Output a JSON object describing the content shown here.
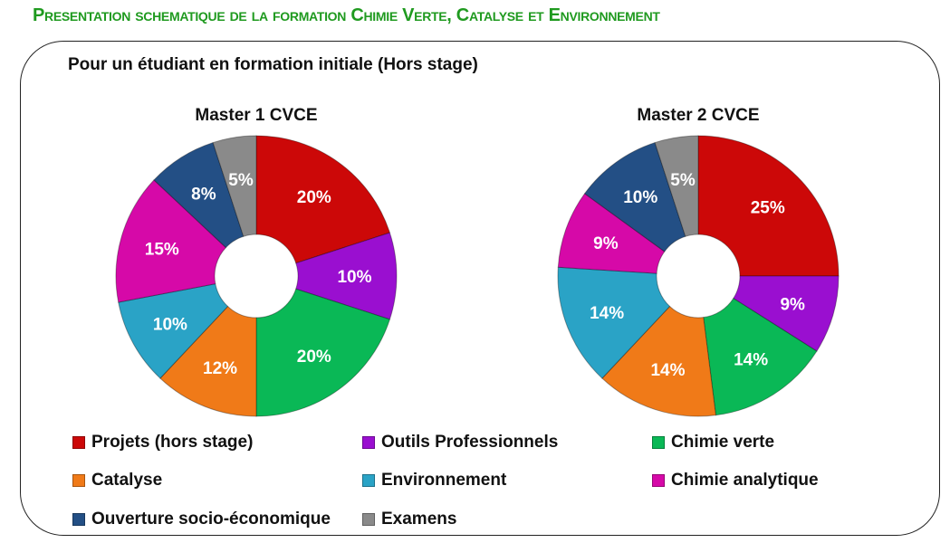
{
  "page_title": "Presentation schematique de la formation Chimie Verte, Catalyse et Environnement",
  "subtitle": "Pour un étudiant en formation initiale (Hors stage)",
  "chart_data": [
    {
      "type": "pie",
      "variant": "doughnut",
      "title": "Master 1 CVCE",
      "categories": [
        "Projets (hors stage)",
        "Outils Professionnels",
        "Chimie verte",
        "Catalyse",
        "Environnement",
        "Chimie analytique",
        "Ouverture socio-économique",
        "Examens"
      ],
      "values": [
        20,
        10,
        20,
        12,
        10,
        15,
        8,
        5
      ],
      "labels": [
        "20%",
        "10%",
        "20%",
        "12%",
        "10%",
        "15%",
        "8%",
        "5%"
      ]
    },
    {
      "type": "pie",
      "variant": "doughnut",
      "title": "Master 2 CVCE",
      "categories": [
        "Projets (hors stage)",
        "Outils Professionnels",
        "Chimie verte",
        "Catalyse",
        "Environnement",
        "Chimie analytique",
        "Ouverture socio-économique",
        "Examens"
      ],
      "values": [
        25,
        9,
        14,
        14,
        14,
        9,
        10,
        5
      ],
      "labels": [
        "25%",
        "9%",
        "14%",
        "14%",
        "14%",
        "9%",
        "10%",
        "5%"
      ]
    }
  ],
  "legend": {
    "placement": "bottom",
    "items": [
      {
        "label": "Projets (hors stage)",
        "color": "#cc0808"
      },
      {
        "label": "Outils Professionnels",
        "color": "#9a0fd0"
      },
      {
        "label": "Chimie verte",
        "color": "#0ab856"
      },
      {
        "label": "Catalyse",
        "color": "#f07a18"
      },
      {
        "label": "Environnement",
        "color": "#2aa3c6"
      },
      {
        "label": "Chimie analytique",
        "color": "#d609a8"
      },
      {
        "label": "Ouverture socio-économique",
        "color": "#234f85"
      },
      {
        "label": "Examens",
        "color": "#8a8a8a"
      }
    ]
  }
}
